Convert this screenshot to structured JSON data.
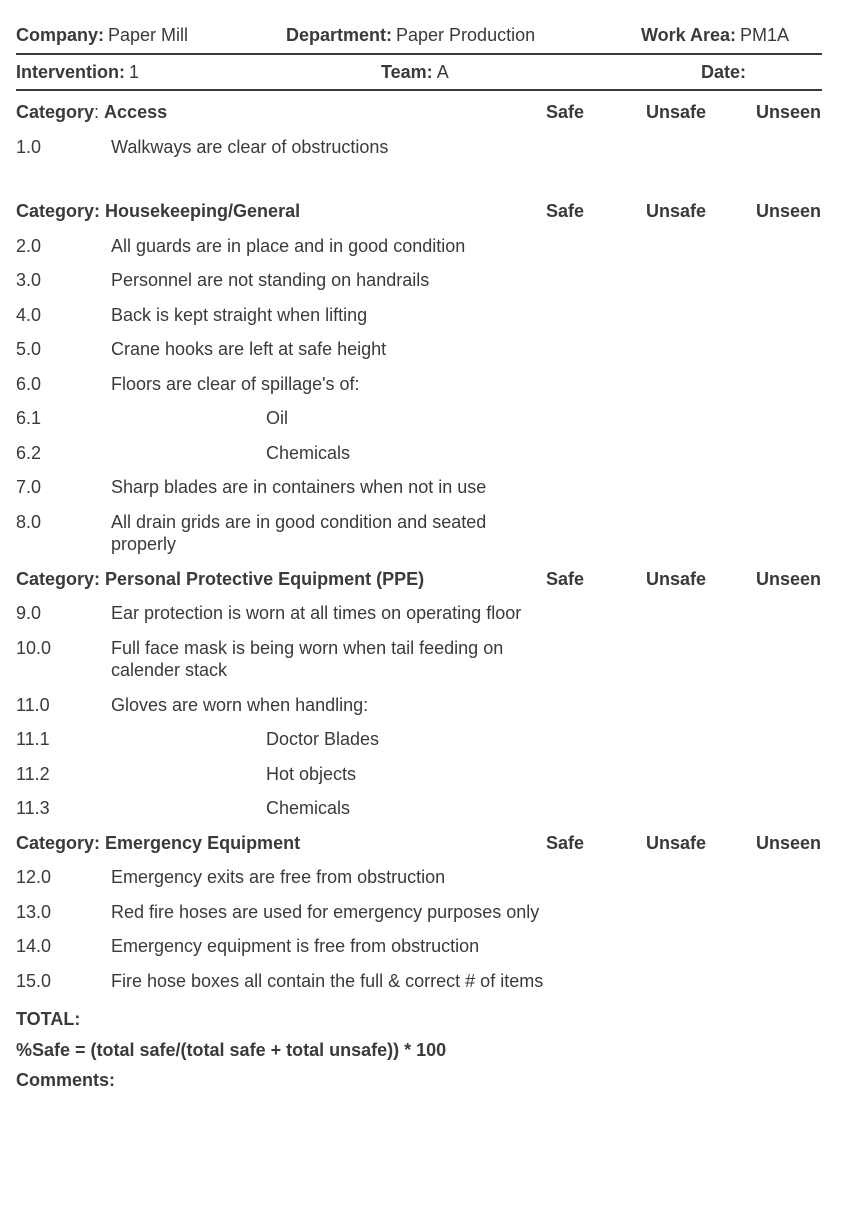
{
  "header": {
    "row1": {
      "company": {
        "label": "Company:",
        "value": "Paper Mill"
      },
      "department": {
        "label": "Department:",
        "value": "Paper Production"
      },
      "workArea": {
        "label": "Work Area:",
        "value": "PM1A"
      }
    },
    "row2": {
      "intervention": {
        "label": "Intervention:",
        "value": "1"
      },
      "team": {
        "label": "Team:",
        "value": "A"
      },
      "date": {
        "label": "Date:",
        "value": ""
      }
    }
  },
  "columnHeads": {
    "safe": "Safe",
    "unsafe": "Unsafe",
    "unseen": "Unseen"
  },
  "categoryLabel": "Category",
  "categoryLabelColon": "Category:",
  "sections": [
    {
      "name": "Access",
      "firstCatColon": ":",
      "items": [
        {
          "num": "1.0",
          "text": "Walkways are clear of obstructions",
          "indent": false
        }
      ],
      "extraGap": true
    },
    {
      "name": "Housekeeping/General",
      "items": [
        {
          "num": "2.0",
          "text": "All guards are in place and in good condition",
          "indent": false
        },
        {
          "num": "3.0",
          "text": "Personnel are not standing on handrails",
          "indent": false
        },
        {
          "num": "4.0",
          "text": "Back is kept straight when lifting",
          "indent": false
        },
        {
          "num": "5.0",
          "text": "Crane hooks are left at safe height",
          "indent": false
        },
        {
          "num": "6.0",
          "text": "Floors are clear of spillage's of:",
          "indent": false
        },
        {
          "num": "6.1",
          "text": "Oil",
          "indent": true
        },
        {
          "num": "6.2",
          "text": "Chemicals",
          "indent": true
        },
        {
          "num": "7.0",
          "text": "Sharp blades are in containers when not in use",
          "indent": false
        },
        {
          "num": "8.0",
          "text": "All drain grids are in good condition and seated properly",
          "indent": false
        }
      ]
    },
    {
      "name": "Personal Protective Equipment (PPE)",
      "items": [
        {
          "num": "9.0",
          "text": "Ear protection is worn at all times on operating floor",
          "indent": false
        },
        {
          "num": "10.0",
          "text": "Full face mask is being worn when tail feeding on calender stack",
          "indent": false
        },
        {
          "num": "11.0",
          "text": "Gloves are worn when handling:",
          "indent": false
        },
        {
          "num": "11.1",
          "text": "Doctor Blades",
          "indent": true
        },
        {
          "num": "11.2",
          "text": "Hot objects",
          "indent": true
        },
        {
          "num": "11.3",
          "text": "Chemicals",
          "indent": true
        }
      ]
    },
    {
      "name": "Emergency Equipment",
      "items": [
        {
          "num": "12.0",
          "text": "Emergency exits are free from obstruction",
          "indent": false
        },
        {
          "num": "13.0",
          "text": "Red fire hoses are used for emergency purposes only",
          "indent": false
        },
        {
          "num": "14.0",
          "text": "Emergency equipment is free from obstruction",
          "indent": false
        },
        {
          "num": "15.0",
          "text": "Fire hose boxes all contain the full & correct # of items",
          "indent": false
        }
      ]
    }
  ],
  "footer": {
    "total": "TOTAL:",
    "formula": "%Safe = (total safe/(total safe + total unsafe)) * 100",
    "comments": "Comments:"
  },
  "colors": {
    "text": "#3a3a3a",
    "rule": "#3a3a3a",
    "background": "#ffffff"
  }
}
